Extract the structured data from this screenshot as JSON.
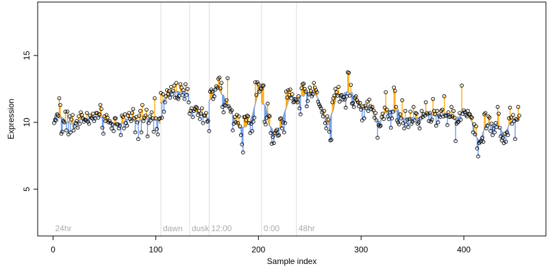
{
  "chart_data": {
    "type": "scatter",
    "title": "",
    "xlabel": "Sample index",
    "ylabel": "Expression",
    "xlim": [
      -15,
      480
    ],
    "ylim": [
      1.5,
      19
    ],
    "x_ticks": [
      0,
      100,
      200,
      300,
      400
    ],
    "y_ticks": [
      5,
      10,
      15
    ],
    "grid": false,
    "legend": "none",
    "colors": {
      "above": "#ffa500",
      "below": "#6495ed",
      "smooth": "#aaaaaa",
      "separator": "#dddddd",
      "point_edge": "#000000",
      "phase_text": "#aaaaaa"
    },
    "phases": [
      {
        "label": "24hr",
        "x": 0
      },
      {
        "label": "dawn",
        "x": 105
      },
      {
        "label": "dusk",
        "x": 133
      },
      {
        "label": "12:00",
        "x": 152
      },
      {
        "label": "0:00",
        "x": 203
      },
      {
        "label": "48hr",
        "x": 237
      }
    ],
    "series": [
      {
        "x_start": 1,
        "x_step": 1,
        "values": [
          9.95,
          10.2,
          10.15,
          10.6,
          10.5,
          11.8,
          11.3,
          9.15,
          9.3,
          10.1,
          10.0,
          10.8,
          9.4,
          10.8,
          9.1,
          10.45,
          9.25,
          10.2,
          10.55,
          9.4,
          9.7,
          9.95,
          10.1,
          9.6,
          10.45,
          9.9,
          10.75,
          10.55,
          10.3,
          10.05,
          10.2,
          10.15,
          10.7,
          10.05,
          9.9,
          10.5,
          10.35,
          10.3,
          10.65,
          10.1,
          10.3,
          10.7,
          10.7,
          10.35,
          10.6,
          11.3,
          11.0,
          9.6,
          9.15,
          10.45,
          10.1,
          10.55,
          10.35,
          10.0,
          10.1,
          9.95,
          9.55,
          9.85,
          9.35,
          10.3,
          10.3,
          9.85,
          9.85,
          9.55,
          9.75,
          9.05,
          10.5,
          10.4,
          9.55,
          10.6,
          9.95,
          9.75,
          10.5,
          10.7,
          10.25,
          10.1,
          10.7,
          11.0,
          10.3,
          9.25,
          10.4,
          10.0,
          8.75,
          10.5,
          10.85,
          9.25,
          11.3,
          10.1,
          10.35,
          10.5,
          10.95,
          8.95,
          9.95,
          10.45,
          10.15,
          10.75,
          10.3,
          9.3,
          11.8,
          10.3,
          9.5,
          9.1,
          10.25,
          10.3,
          12.2,
          10.35,
          12.1,
          10.8,
          11.5,
          11.95,
          12.4,
          12.1,
          12.35,
          11.85,
          12.65,
          12.1,
          12.35,
          12.75,
          11.85,
          12.95,
          11.85,
          11.75,
          12.0,
          12.85,
          12.6,
          12.05,
          12.4,
          11.75,
          12.85,
          12.05,
          12.5,
          11.5,
          10.65,
          10.85,
          11.05,
          10.4,
          10.85,
          11.0,
          11.15,
          11.1,
          10.55,
          10.85,
          10.25,
          10.65,
          11.05,
          9.95,
          10.5,
          10.5,
          10.7,
          10.05,
          10.1,
          9.35,
          12.3,
          12.45,
          12.3,
          11.75,
          11.95,
          12.45,
          12.7,
          12.6,
          13.25,
          13.35,
          12.55,
          12.95,
          11.15,
          10.75,
          11.3,
          11.25,
          11.65,
          13.3,
          11.2,
          11.05,
          10.8,
          10.9,
          9.4,
          9.9,
          10.4,
          10.0,
          10.55,
          9.95,
          10.45,
          9.7,
          9.05,
          8.35,
          7.75,
          10.4,
          10.4,
          10.15,
          10.5,
          10.45,
          9.95,
          9.2,
          9.9,
          9.35,
          10.05,
          10.35,
          13.0,
          12.05,
          13.0,
          12.85,
          12.3,
          12.55,
          12.5,
          12.75,
          12.75,
          10.05,
          9.85,
          10.35,
          11.4,
          10.5,
          10.45,
          9.2,
          8.4,
          8.9,
          8.45,
          9.2,
          9.35,
          9.45,
          9.0,
          9.05,
          10.25,
          10.3,
          9.55,
          10.0,
          9.25,
          9.95,
          12.3,
          11.85,
          12.4,
          12.05,
          12.45,
          11.8,
          12.1,
          11.5,
          11.55,
          11.75,
          11.65,
          11.5,
          11.95,
          11.05,
          10.6,
          12.55,
          12.85,
          12.9,
          12.5,
          12.3,
          11.2,
          11.6,
          12.1,
          12.6,
          12.35,
          11.95,
          12.1,
          12.95,
          12.6,
          12.4,
          12.25,
          11.55,
          11.35,
          11.2,
          11.05,
          10.75,
          10.45,
          10.85,
          9.95,
          9.55,
          10.45,
          10.2,
          9.3,
          8.65,
          8.7,
          11.5,
          11.8,
          12.0,
          12.5,
          12.25,
          12.0,
          12.65,
          11.55,
          12.0,
          12.05,
          11.7,
          11.9,
          11.7,
          11.1,
          11.95,
          13.75,
          13.7,
          12.0,
          12.8,
          11.4,
          11.45,
          11.15,
          11.85,
          11.95,
          11.65,
          11.5,
          11.2,
          11.45,
          10.95,
          10.15,
          11.2,
          10.3,
          11.25,
          11.05,
          11.55,
          10.85,
          11.7,
          11.2,
          11.0,
          11.15,
          10.9,
          10.35,
          10.7,
          10.15,
          8.85,
          9.8,
          9.7,
          9.75,
          10.4,
          10.65,
          10.25,
          11.1,
          12.25,
          10.95,
          10.45,
          10.25,
          10.75,
          9.6,
          10.3,
          10.8,
          12.6,
          12.35,
          11.15,
          10.15,
          10.0,
          9.85,
          10.6,
          10.3,
          11.65,
          9.95,
          9.55,
          10.85,
          9.85,
          10.2,
          9.65,
          10.25,
          10.8,
          9.9,
          10.05,
          11.15,
          10.15,
          10.7,
          10.65,
          9.9,
          10.0,
          9.55,
          10.3,
          10.85,
          10.4,
          10.6,
          10.5,
          11.5,
          10.7,
          10.6,
          10.1,
          10.7,
          10.05,
          10.2,
          11.75,
          10.85,
          10.6,
          9.75,
          10.85,
          10.0,
          10.5,
          10.4,
          10.85,
          10.95,
          10.45,
          11.95,
          10.5,
          10.5,
          9.8,
          10.75,
          10.4,
          10.45,
          11.15,
          10.45,
          10.85,
          10.35,
          8.6,
          9.9,
          10.0,
          10.05,
          10.7,
          10.2,
          12.75,
          10.65,
          10.9,
          10.75,
          10.55,
          10.45,
          10.85,
          10.6,
          10.6,
          10.4,
          10.35,
          9.25,
          9.85,
          9.1,
          9.7,
          8.05,
          7.45,
          8.45,
          8.55,
          8.6,
          8.85,
          8.55,
          10.6,
          10.7,
          9.55,
          9.75,
          10.45,
          10.35,
          9.35,
          9.9,
          9.05,
          9.55,
          9.25,
          9.95,
          9.65,
          11.15,
          10.65,
          9.6,
          8.95,
          8.65,
          8.85,
          8.45,
          9.15,
          8.55,
          9.25,
          9.05,
          10.3,
          11.1,
          10.35,
          9.9,
          10.55,
          10.1,
          8.75,
          10.25,
          10.2,
          11.15,
          10.5
        ]
      }
    ]
  }
}
